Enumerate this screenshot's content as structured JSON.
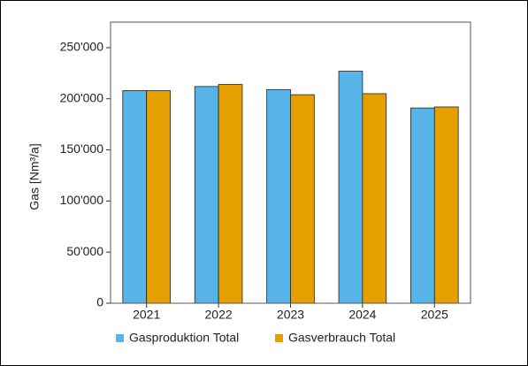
{
  "chart_data": {
    "type": "bar",
    "y_label": "Gas [Nm³/a]",
    "categories": [
      "2021",
      "2022",
      "2023",
      "2024",
      "2025"
    ],
    "series": [
      {
        "name": "Gasproduktion Total",
        "color": "#56b4e9",
        "values": [
          208000,
          212000,
          209000,
          227000,
          191000
        ]
      },
      {
        "name": "Gasverbrauch Total",
        "color": "#e69f00",
        "values": [
          208000,
          214000,
          204000,
          205000,
          192000
        ]
      }
    ],
    "ylim": [
      0,
      275000
    ],
    "yticks": [
      0,
      {
        "value": 50000,
        "label": "50'000"
      },
      {
        "value": 100000,
        "label": "100'000"
      },
      {
        "value": 150000,
        "label": "150'000"
      },
      {
        "value": 200000,
        "label": "200'000"
      },
      {
        "value": 250000,
        "label": "250'000"
      }
    ],
    "grid": false,
    "legend": "bottom"
  }
}
